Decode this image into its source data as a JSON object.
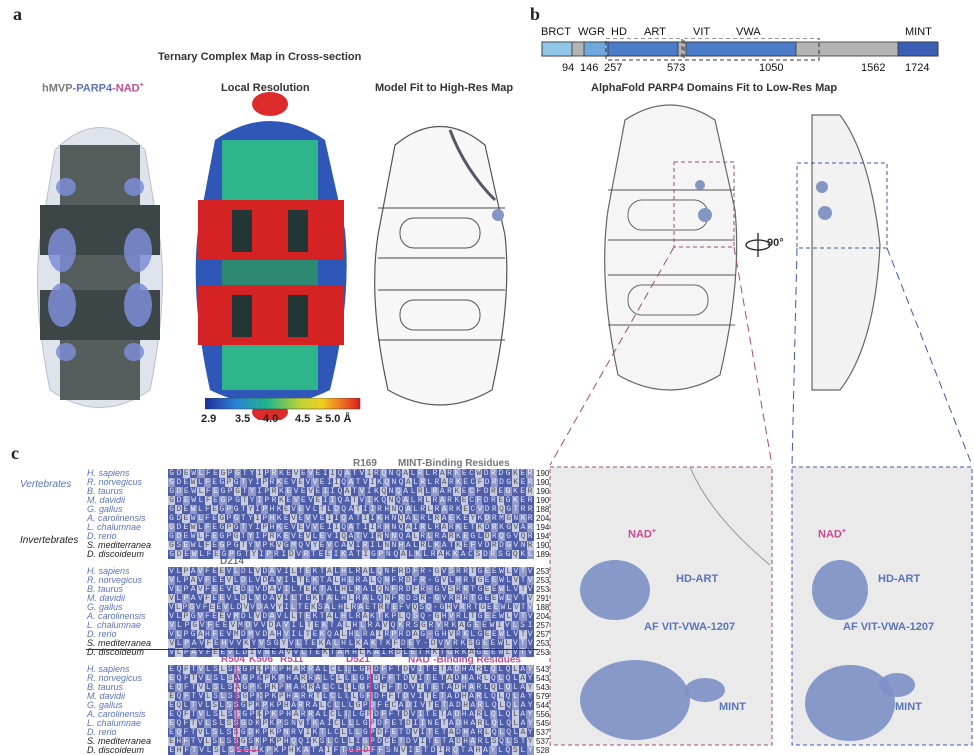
{
  "panel_a": {
    "letter": "a",
    "title": "Ternary Complex Map in Cross-section",
    "sub1": {
      "part1": "hMVP-",
      "part2": "PARP4",
      "part3": "-NAD",
      "sup": "+"
    },
    "sub2": "Local Resolution",
    "sub3": "Model Fit to High-Res Map",
    "colorbar": {
      "ticks": [
        "2.9",
        "3.5",
        "4.0",
        "4.5",
        "≥ 5.0 Å"
      ]
    }
  },
  "panel_b": {
    "letter": "b",
    "domains": [
      "BRCT",
      "WGR",
      "HD",
      "ART",
      "VIT",
      "VWA",
      "MINT"
    ],
    "positions": [
      "94",
      "146",
      "257",
      "573",
      "1050",
      "1562",
      "1724"
    ],
    "title": "AlphaFold PARP4 Domains Fit to Low-Res Map",
    "rotation": "90°",
    "inset1": {
      "nad": "NAD",
      "nad_sup": "+",
      "hdart": "HD-ART",
      "vit": "AF VIT-VWA-1207",
      "mint": "MINT"
    },
    "inset2": {
      "nad": "NAD",
      "nad_sup": "+",
      "hdart": "HD-ART",
      "vit": "AF VIT-VWA-1207",
      "mint": "MINT"
    }
  },
  "panel_c": {
    "letter": "c",
    "group_vert": "Vertebrates",
    "group_inv": "Invertebrates",
    "species": [
      "H. sapiens",
      "R. norvegicus",
      "B. taurus",
      "M. davidii",
      "G. gallus",
      "A. carolinensis",
      "L. chalumnae",
      "D. rerio",
      "S. mediterranea",
      "D. discoideum"
    ],
    "blocks": [
      {
        "labels": [
          "R169",
          "MINT-Binding Residues"
        ],
        "rows": [
          "GDEWLFEGPGTYIPRKEVEVEIIQATVIRQNQALRLRARKECWDRDGKER",
          "GDEWLFEGPGTYIPRKEVEVVEIIQATVIKQNQALRLRARKECFDRDGKER",
          "GDEWLFEGPGTYIPRKEVEVEIIQATVIKQNQALRLRARKECFDREGKER",
          "GDEWLFEGPGTYIPRKEVEVEIIQATVIKQNQALRLRARKECFDREGKER",
          "GDEWLFEGPGTYIPHKEVEVLTLDQATIIRHNQALRLRARKECVDRQGTRR",
          "GDEWLFEGPGTYIPHKEVEVVEIIQATIIKHNQALRLRAEKEYKDRMGNKR",
          "GDEWLFEGPGTYIPHKEVEVVEIIQATIIRHNQAIRLRARKETKDRKGVAR",
          "GDEWLFEGPGTYIPRKEVEVLEVIQATVIRNNQALRLRARKEGLDRQGVQR",
          "GSEWLFEGPGTYVPKVGMQVYEVCAVIRILNNHALRLKATKEFVDRDGVNR",
          "GDEWLFEGPGTYIPRIDVRTEEIKATIGPNQALKLRAKKACSDRSGQKE"
        ],
        "ends": [
          "190",
          "190",
          "190",
          "190",
          "188",
          "204",
          "194",
          "194",
          "190",
          "189"
        ]
      },
      {
        "labels": [
          "D214"
        ],
        "rows": [
          "VLPAVFEEVLDLVDAVILTEKTALHLRALQNFRDFR-GVSRRTGEEWLVTV",
          "VLPAVFEEVLDLVDAVILTEKTALHLRALQNFRDFR-GVLHRTGEEWLVTV",
          "VLPAVFEEVLDLVDAVILTEKTALHLRALQNFRDFR-GVSRRTGEEWLVTV",
          "VLPAVFEEVLDLVDAVILTEKTALHLRALQNFRDSR-GVRRRTGEEWLVTV",
          "VLPGVFEEVLDVVDAVYILTEKSALHLRAETRTEFVQSQ-GHVRRTGEEWLVTV",
          "VLPGVFEEVMDLVDAVLLTEKTALHLRAKTKPLQSQ-GHVRLTGEEWLVTV",
          "VLPGVFEEVMDVVDAVILTEKTALHLRAVQKRSGRVRKAGEEWIVLSI",
          "VLPGAHFEVMDMVDAHVILTEKQALHLRAIRPRDAG-GHVRKLGEEWLVTV",
          "VLPAVFEHVVKYVSGYVLTEKALHLKAKTKFDEY-DVVRKSGEEWLVTV",
          "VLPAVFEEVLDIVNEAVVLTEKTAMHLKAIRDLETRKTGRKAGEEWLVTV"
        ],
        "ends": [
          "253",
          "253",
          "253",
          "291",
          "188",
          "204",
          "257",
          "257",
          "253",
          "253"
        ]
      },
      {
        "labels": [
          "R504",
          "K506",
          "R511",
          "D521",
          "NAD",
          "-Binding Residues"
        ],
        "rows": [
          "EQFTVLSLSAGPKPKPHARRALCLLLGPDFFTDVITETADHARLQLQLAY",
          "EQFTVLSLSAGPKPKPHARRALCLLLGPDFFTDVITETADHARLQLQLAY",
          "EQFTVLSLSAGPKPKPHARRALCLLLGPDFFTDVITETADHARLQLQLAY",
          "EQFTVLSLSSGPKPKPHARRTLCLLLGPDFFTDVITETADHARLQLQLAY",
          "EQLTVLSLSSGPKPKPHARRALCLLLGPDFECADIVTETADHARLQLQLAY",
          "EQFTVLSLSSGPKPKPHARRALCLLLGPDFFTDVITETADHARLQLQLAY",
          "EQFTVLSLSSGDKPKPSNVTKAICLLLGPDFETDIINETADHARLQLQLAY",
          "EQFTVLSLSSGDKPKPNRVIKTLCLLLGPDFETDVITETADHARLQLQLAY",
          "EHFTVLSLSSGSKPKPHQQIKSLCLLIGPDCETDVITETADHARLSQLSTY",
          "EHFTVLSLSSGSKPKPHKATAIFTGPDFFSNVIETDIRQTAHAYLQSLY"
        ],
        "ends": [
          "543",
          "543",
          "543",
          "579",
          "544",
          "556",
          "545",
          "537",
          "537",
          "528"
        ]
      }
    ]
  }
}
